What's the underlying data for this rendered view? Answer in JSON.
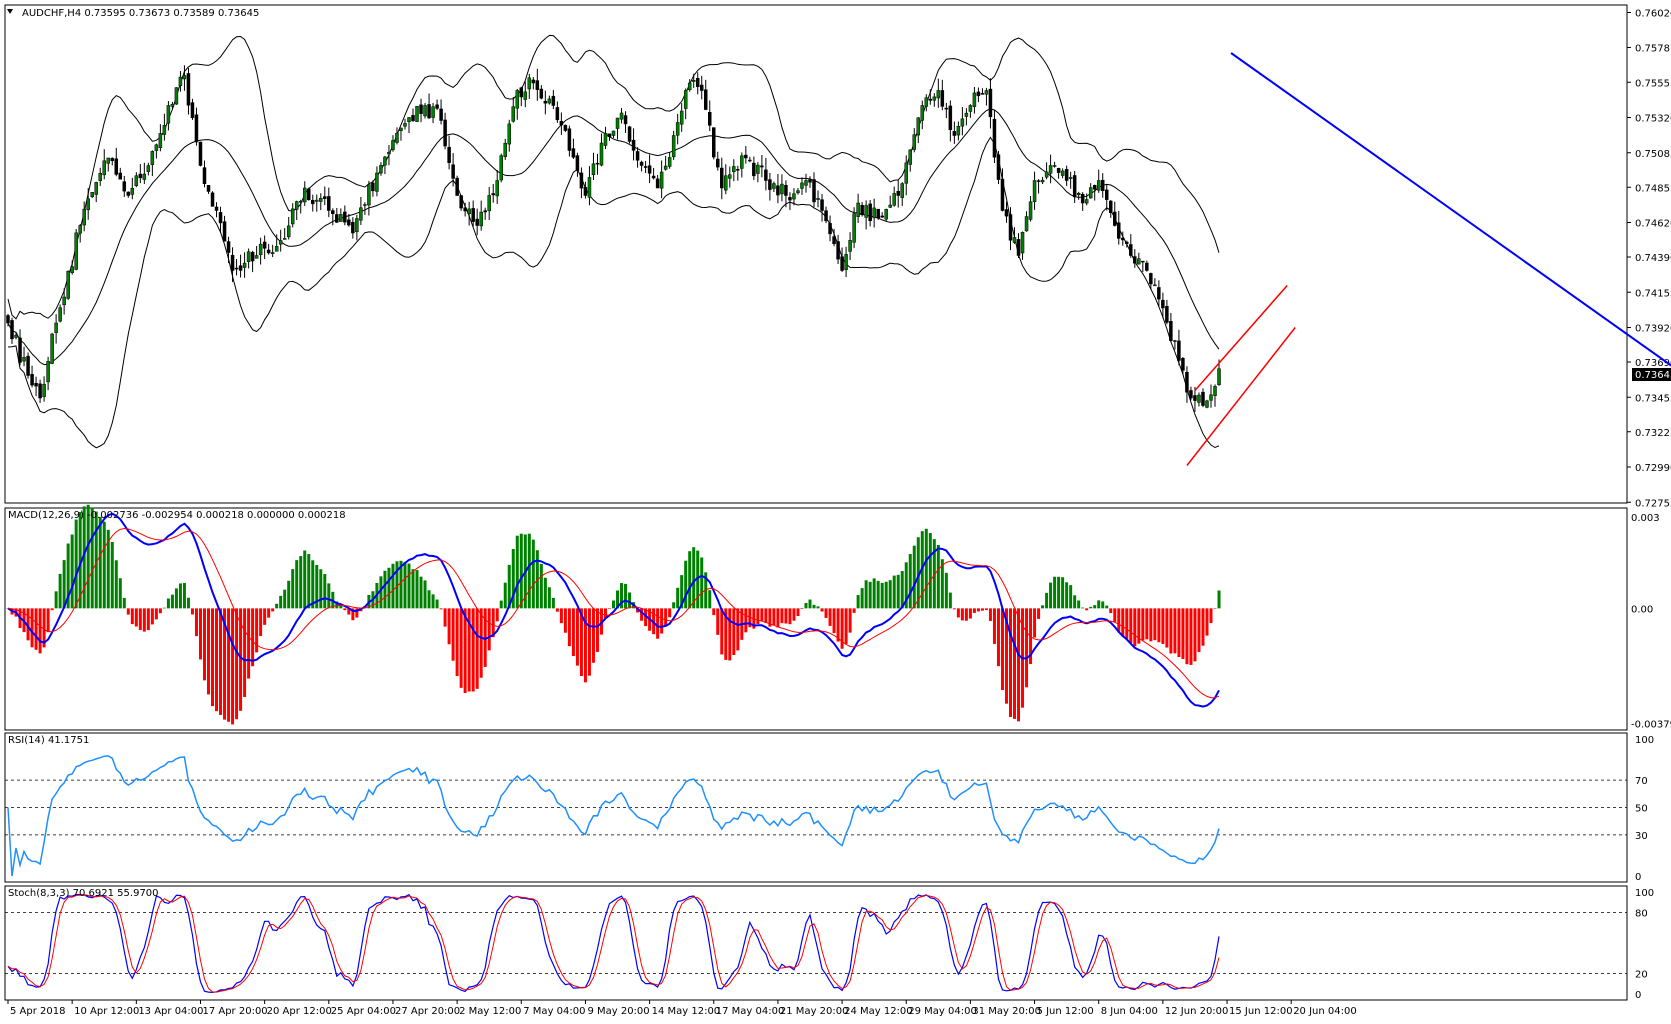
{
  "header": {
    "symbol_line": "AUDCHF,H4  0.73595 0.73673 0.73589 0.73645",
    "current_price": "0.73645"
  },
  "colors": {
    "bull_candle": "#008000",
    "bear_candle": "#000000",
    "bollinger": "#000000",
    "trendline": "#0000ff",
    "channel": "#ff0000",
    "macd_line": "#0000ff",
    "signal_line": "#ff0000",
    "hist_pos": "#008000",
    "hist_neg": "#ff0000",
    "rsi_line": "#1e90ff",
    "stoch_main": "#0000ff",
    "stoch_signal": "#ff0000"
  },
  "chart_data": {
    "type": "candlestick",
    "price_axis": {
      "ticks": [
        "0.76020",
        "0.75787",
        "0.75555",
        "0.75320",
        "0.75085",
        "0.74855",
        "0.74620",
        "0.74390",
        "0.74155",
        "0.73920",
        "0.73690",
        "0.73455",
        "0.73225",
        "0.72990",
        "0.72755"
      ],
      "range": [
        0.7275,
        0.7607
      ]
    },
    "x_ticks": [
      "5 Apr 2018",
      "10 Apr 12:00",
      "13 Apr 04:00",
      "17 Apr 20:00",
      "20 Apr 12:00",
      "25 Apr 04:00",
      "27 Apr 20:00",
      "2 May 12:00",
      "7 May 04:00",
      "9 May 20:00",
      "14 May 12:00",
      "17 May 04:00",
      "21 May 20:00",
      "24 May 12:00",
      "29 May 04:00",
      "31 May 20:00",
      "5 Jun 12:00",
      "8 Jun 04:00",
      "12 Jun 20:00",
      "15 Jun 12:00",
      "20 Jun 04:00"
    ],
    "close_anchors": [
      [
        0,
        0.7395
      ],
      [
        5,
        0.736
      ],
      [
        8,
        0.7345
      ],
      [
        12,
        0.7395
      ],
      [
        18,
        0.746
      ],
      [
        25,
        0.7505
      ],
      [
        30,
        0.748
      ],
      [
        35,
        0.75
      ],
      [
        40,
        0.754
      ],
      [
        44,
        0.756
      ],
      [
        48,
        0.75
      ],
      [
        52,
        0.747
      ],
      [
        56,
        0.743
      ],
      [
        62,
        0.744
      ],
      [
        68,
        0.745
      ],
      [
        74,
        0.7485
      ],
      [
        80,
        0.747
      ],
      [
        86,
        0.7455
      ],
      [
        92,
        0.7495
      ],
      [
        98,
        0.7525
      ],
      [
        104,
        0.754
      ],
      [
        108,
        0.753
      ],
      [
        112,
        0.748
      ],
      [
        117,
        0.746
      ],
      [
        122,
        0.749
      ],
      [
        127,
        0.755
      ],
      [
        131,
        0.7555
      ],
      [
        136,
        0.754
      ],
      [
        140,
        0.751
      ],
      [
        144,
        0.748
      ],
      [
        148,
        0.7515
      ],
      [
        153,
        0.7535
      ],
      [
        158,
        0.75
      ],
      [
        162,
        0.7485
      ],
      [
        166,
        0.752
      ],
      [
        170,
        0.7555
      ],
      [
        173,
        0.755
      ],
      [
        178,
        0.7485
      ],
      [
        184,
        0.7505
      ],
      [
        189,
        0.749
      ],
      [
        194,
        0.748
      ],
      [
        199,
        0.749
      ],
      [
        203,
        0.747
      ],
      [
        208,
        0.743
      ],
      [
        212,
        0.7475
      ],
      [
        217,
        0.7465
      ],
      [
        222,
        0.748
      ],
      [
        228,
        0.754
      ],
      [
        232,
        0.755
      ],
      [
        236,
        0.752
      ],
      [
        240,
        0.754
      ],
      [
        244,
        0.755
      ],
      [
        248,
        0.747
      ],
      [
        252,
        0.744
      ],
      [
        256,
        0.749
      ],
      [
        260,
        0.75
      ],
      [
        264,
        0.749
      ],
      [
        268,
        0.7475
      ],
      [
        272,
        0.749
      ],
      [
        276,
        0.746
      ],
      [
        280,
        0.744
      ],
      [
        284,
        0.743
      ],
      [
        288,
        0.7405
      ],
      [
        292,
        0.737
      ],
      [
        295,
        0.7345
      ],
      [
        298,
        0.734
      ],
      [
        302,
        0.73645
      ]
    ],
    "bollinger_bands": {
      "period": 20,
      "deviations": 2
    },
    "trendline": {
      "from": [
        305,
        0.7575
      ],
      "to": [
        452,
        0.7296
      ]
    },
    "channel": {
      "upper": {
        "from": [
          296,
          0.735
        ],
        "to": [
          319,
          0.742
        ]
      },
      "lower": {
        "from": [
          294,
          0.73
        ],
        "to": [
          321,
          0.7392
        ]
      }
    },
    "indicators": [
      {
        "type": "macd",
        "title": "MACD(12,26,9) -0.002736 -0.002954 0.000218 0.000000 0.000218",
        "ticks": [
          "0.003",
          "0.00",
          "-0.003792"
        ],
        "range": [
          -0.004,
          0.0033
        ]
      },
      {
        "type": "rsi",
        "title": "RSI(14) 41.1751",
        "ticks": [
          "100",
          "70",
          "50",
          "30",
          "0"
        ],
        "levels": [
          70,
          50,
          30
        ]
      },
      {
        "type": "stochastic",
        "title": "Stoch(8,3,3) 70.6921 55.9700",
        "ticks": [
          "100",
          "80",
          "20",
          "0"
        ],
        "levels": [
          80,
          20
        ]
      }
    ]
  }
}
